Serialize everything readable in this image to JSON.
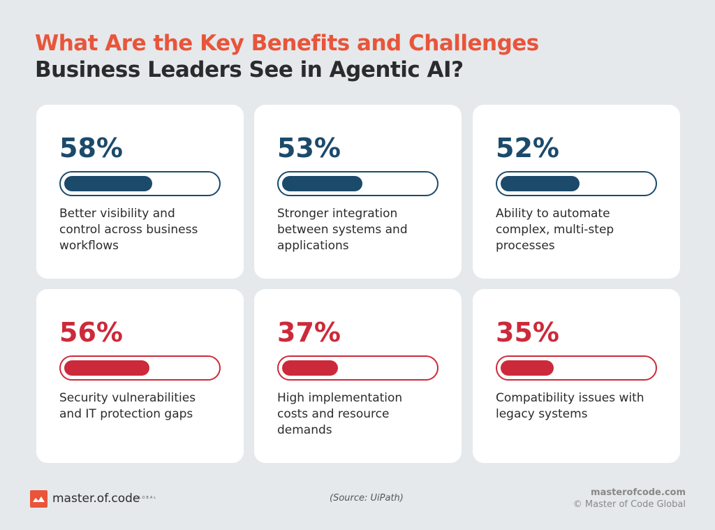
{
  "header": {
    "title_line1": "What Are the Key Benefits and Challenges",
    "title_line2": "Business Leaders See in Agentic AI?"
  },
  "cards": [
    {
      "value": 58,
      "value_label": "58%",
      "color": "#1b4a6b",
      "lines": [
        "Better visibility and",
        "control across business",
        "workflows"
      ]
    },
    {
      "value": 53,
      "value_label": "53%",
      "color": "#1b4a6b",
      "lines": [
        "Stronger integration",
        "between systems and",
        "applications"
      ]
    },
    {
      "value": 52,
      "value_label": "52%",
      "color": "#1b4a6b",
      "lines": [
        "Ability to automate",
        "complex, multi-step",
        "processes"
      ]
    },
    {
      "value": 56,
      "value_label": "56%",
      "color": "#cc2a3a",
      "lines": [
        "Security vulnerabilities",
        "and IT protection gaps"
      ]
    },
    {
      "value": 37,
      "value_label": "37%",
      "color": "#cc2a3a",
      "lines": [
        "High implementation",
        "costs and resource",
        "demands"
      ]
    },
    {
      "value": 35,
      "value_label": "35%",
      "color": "#cc2a3a",
      "lines": [
        "Compatibility issues with",
        "legacy systems"
      ]
    }
  ],
  "footer": {
    "logo": "master.of.code",
    "logo_sub": "GLOBAL",
    "source": "(Source: UiPath)",
    "site": "masterofcode.com",
    "copyright": "© Master of Code Global"
  }
}
